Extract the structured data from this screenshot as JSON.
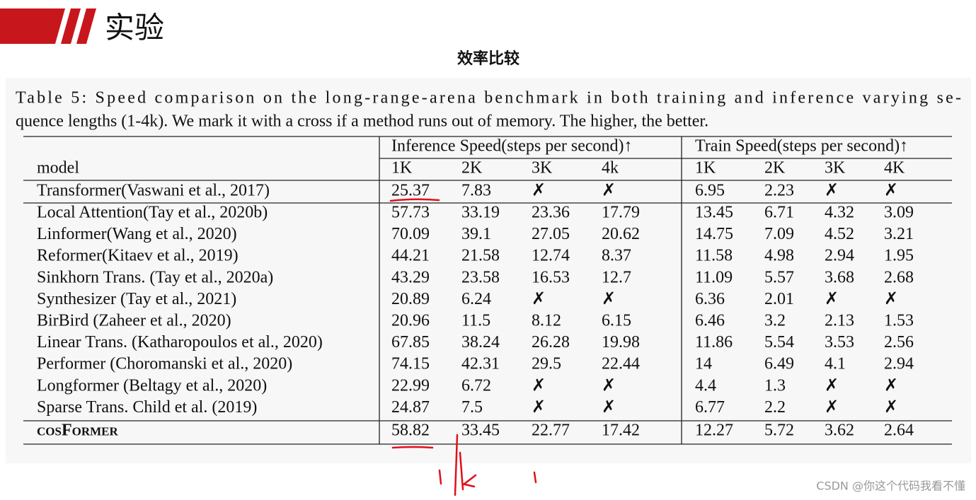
{
  "header": {
    "title": "实验",
    "subtitle": "效率比较"
  },
  "caption": [
    "Table 5: Speed comparison on the long-range-arena benchmark in both training and inference varying se-",
    "quence lengths (1-4k). We mark it with a cross if a method runs out of memory. The higher, the better."
  ],
  "table": {
    "group_headers": [
      "Inference Speed(steps per second)↑",
      "Train Speed(steps per second)↑"
    ],
    "columns": [
      "model",
      "1K",
      "2K",
      "3K",
      "4k",
      "1K",
      "2K",
      "3K",
      "4K"
    ],
    "rows": [
      [
        "Transformer(Vaswani et al., 2017)",
        "25.37",
        "7.83",
        "✗",
        "✗",
        "6.95",
        "2.23",
        "✗",
        "✗"
      ],
      [
        "Local Attention(Tay et al., 2020b)",
        "57.73",
        "33.19",
        "23.36",
        "17.79",
        "13.45",
        "6.71",
        "4.32",
        "3.09"
      ],
      [
        "Linformer(Wang et al., 2020)",
        "70.09",
        "39.1",
        "27.05",
        "20.62",
        "14.75",
        "7.09",
        "4.52",
        "3.21"
      ],
      [
        "Reformer(Kitaev et al., 2019)",
        "44.21",
        "21.58",
        "12.74",
        "8.37",
        "11.58",
        "4.98",
        "2.94",
        "1.95"
      ],
      [
        "Sinkhorn Trans. (Tay et al., 2020a)",
        "43.29",
        "23.58",
        "16.53",
        "12.7",
        "11.09",
        "5.57",
        "3.68",
        "2.68"
      ],
      [
        "Synthesizer (Tay et al., 2021)",
        "20.89",
        "6.24",
        "✗",
        "✗",
        "6.36",
        "2.01",
        "✗",
        "✗"
      ],
      [
        "BirBird (Zaheer et al., 2020)",
        "20.96",
        "11.5",
        "8.12",
        "6.15",
        "6.46",
        "3.2",
        "2.13",
        "1.53"
      ],
      [
        "Linear Trans. (Katharopoulos et al., 2020)",
        "67.85",
        "38.24",
        "26.28",
        "19.98",
        "11.86",
        "5.54",
        "3.53",
        "2.56"
      ],
      [
        "Performer (Choromanski et al., 2020)",
        "74.15",
        "42.31",
        "29.5",
        "22.44",
        "14",
        "6.49",
        "4.1",
        "2.94"
      ],
      [
        "Longformer (Beltagy et al., 2020)",
        "22.99",
        "6.72",
        "✗",
        "✗",
        "4.4",
        "1.3",
        "✗",
        "✗"
      ],
      [
        "Sparse Trans. Child et al. (2019)",
        "24.87",
        "7.5",
        "✗",
        "✗",
        "6.77",
        "2.2",
        "✗",
        "✗"
      ],
      [
        "cosFormer",
        "58.82",
        "33.45",
        "22.77",
        "17.42",
        "12.27",
        "5.72",
        "3.62",
        "2.64"
      ]
    ]
  },
  "watermark": "CSDN @你这个代码我看不懂"
}
